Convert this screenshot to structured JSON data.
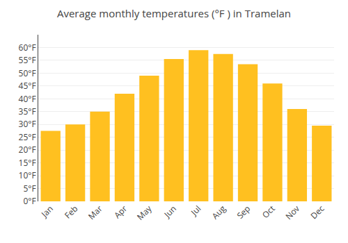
{
  "chart_data": {
    "type": "bar",
    "title": "Average monthly temperatures (°F ) in Tramelan",
    "categories": [
      "Jan",
      "Feb",
      "Mar",
      "Apr",
      "May",
      "Jun",
      "Jul",
      "Aug",
      "Sep",
      "Oct",
      "Nov",
      "Dec"
    ],
    "values": [
      27.5,
      30.0,
      35.0,
      42.0,
      49.0,
      55.5,
      59.0,
      57.5,
      53.5,
      46.0,
      36.0,
      29.5
    ],
    "color": "#FFC020",
    "ylim": [
      0,
      65
    ],
    "yticks": [
      {
        "value": 0,
        "label": "0°F"
      },
      {
        "value": 5,
        "label": "5°F"
      },
      {
        "value": 10,
        "label": "10°F"
      },
      {
        "value": 15,
        "label": "15°F"
      },
      {
        "value": 20,
        "label": "20°F"
      },
      {
        "value": 25,
        "label": "25°F"
      },
      {
        "value": 30,
        "label": "30°F"
      },
      {
        "value": 35,
        "label": "35°F"
      },
      {
        "value": 40,
        "label": "40°F"
      },
      {
        "value": 45,
        "label": "45°F"
      },
      {
        "value": 50,
        "label": "50°F"
      },
      {
        "value": 55,
        "label": "55°F"
      },
      {
        "value": 60,
        "label": "60°F"
      }
    ],
    "grid": true
  }
}
